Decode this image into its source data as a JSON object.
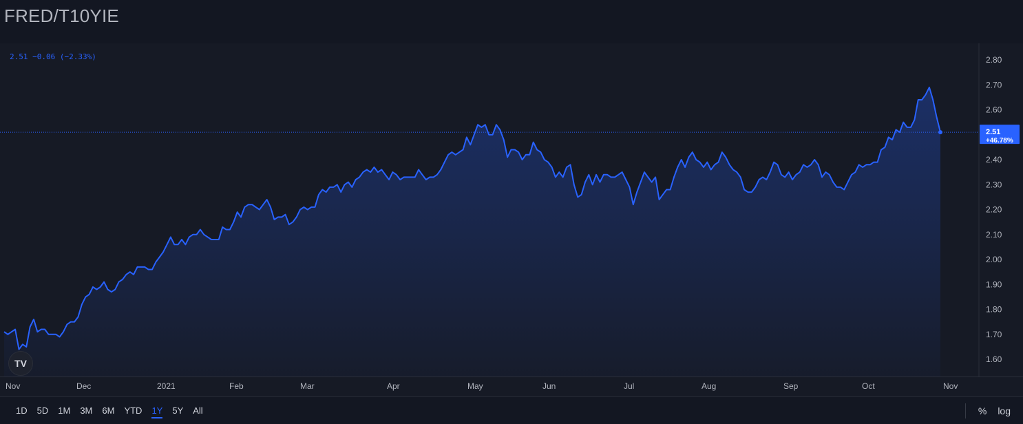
{
  "title": "FRED/T10YIE",
  "legend_text": "2.51 −0.06 (−2.33%)",
  "logo_text": "TV",
  "price_tag": {
    "value": "2.51",
    "change": "+46.78%"
  },
  "time_ranges": [
    "1D",
    "5D",
    "1M",
    "3M",
    "6M",
    "YTD",
    "1Y",
    "5Y",
    "All"
  ],
  "active_range": "1Y",
  "tools": {
    "percent": "%",
    "log": "log"
  },
  "colors": {
    "line": "#2962ff",
    "background": "#131722",
    "tag": "#2962ff"
  },
  "chart_data": {
    "type": "area",
    "ylim": [
      1.55,
      2.86
    ],
    "y_ticks": [
      1.6,
      1.7,
      1.8,
      1.9,
      2.0,
      2.1,
      2.2,
      2.3,
      2.4,
      2.5,
      2.6,
      2.7,
      2.8
    ],
    "y_tick_labels": [
      "1.60",
      "1.70",
      "1.80",
      "1.90",
      "2.00",
      "2.10",
      "2.20",
      "2.30",
      "2.40",
      "2.50",
      "2.60",
      "2.70",
      "2.80"
    ],
    "x_tick_labels": [
      "Nov",
      "Dec",
      "2021",
      "Feb",
      "Mar",
      "Apr",
      "May",
      "Jun",
      "Jul",
      "Aug",
      "Sep",
      "Oct",
      "Nov"
    ],
    "last_value": 2.51,
    "values": [
      1.71,
      1.7,
      1.71,
      1.72,
      1.64,
      1.66,
      1.65,
      1.73,
      1.76,
      1.71,
      1.72,
      1.72,
      1.7,
      1.7,
      1.7,
      1.69,
      1.71,
      1.74,
      1.75,
      1.75,
      1.77,
      1.82,
      1.85,
      1.86,
      1.89,
      1.88,
      1.89,
      1.91,
      1.88,
      1.87,
      1.88,
      1.91,
      1.92,
      1.94,
      1.95,
      1.94,
      1.97,
      1.97,
      1.97,
      1.96,
      1.96,
      1.99,
      2.01,
      2.03,
      2.06,
      2.09,
      2.06,
      2.06,
      2.08,
      2.06,
      2.09,
      2.1,
      2.1,
      2.12,
      2.1,
      2.09,
      2.08,
      2.08,
      2.08,
      2.13,
      2.12,
      2.12,
      2.15,
      2.19,
      2.17,
      2.21,
      2.22,
      2.22,
      2.21,
      2.2,
      2.22,
      2.24,
      2.21,
      2.16,
      2.17,
      2.17,
      2.18,
      2.14,
      2.15,
      2.17,
      2.2,
      2.21,
      2.2,
      2.21,
      2.21,
      2.26,
      2.28,
      2.27,
      2.29,
      2.29,
      2.3,
      2.27,
      2.3,
      2.31,
      2.29,
      2.32,
      2.33,
      2.35,
      2.36,
      2.35,
      2.37,
      2.35,
      2.36,
      2.34,
      2.32,
      2.35,
      2.34,
      2.32,
      2.33,
      2.33,
      2.33,
      2.33,
      2.36,
      2.34,
      2.32,
      2.33,
      2.33,
      2.34,
      2.36,
      2.39,
      2.42,
      2.43,
      2.42,
      2.43,
      2.44,
      2.49,
      2.46,
      2.5,
      2.54,
      2.53,
      2.54,
      2.5,
      2.5,
      2.54,
      2.52,
      2.48,
      2.41,
      2.44,
      2.44,
      2.43,
      2.4,
      2.42,
      2.42,
      2.47,
      2.44,
      2.43,
      2.4,
      2.39,
      2.37,
      2.33,
      2.35,
      2.33,
      2.37,
      2.38,
      2.3,
      2.25,
      2.26,
      2.31,
      2.34,
      2.3,
      2.34,
      2.31,
      2.34,
      2.34,
      2.33,
      2.33,
      2.34,
      2.35,
      2.32,
      2.29,
      2.22,
      2.27,
      2.31,
      2.35,
      2.33,
      2.31,
      2.33,
      2.24,
      2.26,
      2.28,
      2.28,
      2.33,
      2.37,
      2.4,
      2.37,
      2.41,
      2.43,
      2.4,
      2.39,
      2.37,
      2.39,
      2.36,
      2.38,
      2.39,
      2.43,
      2.41,
      2.38,
      2.36,
      2.35,
      2.33,
      2.28,
      2.27,
      2.27,
      2.29,
      2.32,
      2.33,
      2.32,
      2.35,
      2.39,
      2.38,
      2.34,
      2.33,
      2.35,
      2.32,
      2.34,
      2.35,
      2.38,
      2.37,
      2.38,
      2.4,
      2.38,
      2.33,
      2.35,
      2.34,
      2.31,
      2.29,
      2.29,
      2.28,
      2.31,
      2.34,
      2.35,
      2.38,
      2.37,
      2.38,
      2.38,
      2.39,
      2.39,
      2.44,
      2.45,
      2.49,
      2.48,
      2.52,
      2.51,
      2.55,
      2.53,
      2.53,
      2.56,
      2.64,
      2.64,
      2.66,
      2.69,
      2.64,
      2.57,
      2.51
    ]
  }
}
